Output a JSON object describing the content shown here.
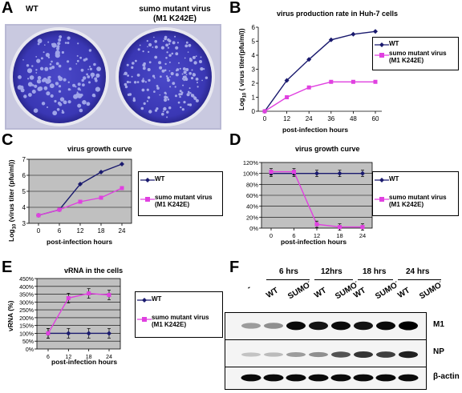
{
  "panel_a": {
    "letter": "A",
    "label_left": "WT",
    "label_right_line1": "sumo mutant virus",
    "label_right_line2": "(M1 K242E)"
  },
  "panel_b": {
    "letter": "B"
  },
  "panel_c": {
    "letter": "C"
  },
  "panel_d": {
    "letter": "D"
  },
  "panel_e": {
    "letter": "E"
  },
  "panel_f": {
    "letter": "F",
    "timepoints": [
      "6 hrs",
      "12hrs",
      "18 hrs",
      "24 hrs"
    ],
    "lane_labels": [
      "-",
      "WT",
      "SUMO",
      "WT",
      "SUMO",
      "WT",
      "SUMO",
      "WT",
      "SUMO"
    ],
    "superscript": "-",
    "rows": [
      "M1",
      "NP",
      "β-actin"
    ]
  },
  "chart_data": [
    {
      "id": "B",
      "type": "line",
      "title": "virus production rate in Huh-7 cells",
      "xlabel": "post-infection hours",
      "ylabel": "Log10 ( virus titer(pfu/ml))",
      "x": [
        0,
        12,
        24,
        36,
        48,
        60
      ],
      "ylim": [
        0,
        6
      ],
      "yticks": [
        0,
        1,
        2,
        3,
        4,
        5,
        6
      ],
      "grid": false,
      "legend_position": "right",
      "series": [
        {
          "name": "WT",
          "color": "#1a1a6e",
          "marker": "diamond",
          "values": [
            0,
            2.2,
            3.7,
            5.1,
            5.5,
            5.7
          ]
        },
        {
          "name": "sumo mutant virus (M1 K242E)",
          "color": "#e040e0",
          "marker": "square",
          "values": [
            0,
            1.0,
            1.7,
            2.1,
            2.1,
            2.1
          ]
        }
      ]
    },
    {
      "id": "C",
      "type": "line",
      "title": "virus growth curve",
      "xlabel": "post-infection hours",
      "ylabel": "Log10 (virus titer (pfu/ml))",
      "x": [
        0,
        6,
        12,
        18,
        24
      ],
      "ylim": [
        3,
        7
      ],
      "yticks": [
        3,
        4,
        5,
        6,
        7
      ],
      "grid": true,
      "legend_position": "right",
      "series": [
        {
          "name": "WT",
          "color": "#1a1a6e",
          "marker": "diamond",
          "values": [
            3.5,
            3.85,
            5.45,
            6.2,
            6.7
          ]
        },
        {
          "name": "sumo mutant virus (M1 K242E)",
          "color": "#e040e0",
          "marker": "square",
          "values": [
            3.5,
            3.85,
            4.35,
            4.6,
            5.2
          ]
        }
      ]
    },
    {
      "id": "D",
      "type": "line",
      "title": "virus growth curve",
      "xlabel": "post-infection hours",
      "ylabel": "",
      "x": [
        0,
        6,
        12,
        18,
        24
      ],
      "ylim": [
        0,
        120
      ],
      "yticks": [
        "0%",
        "20%",
        "40%",
        "60%",
        "80%",
        "100%",
        "120%"
      ],
      "grid": true,
      "legend_position": "right",
      "series": [
        {
          "name": "WT",
          "color": "#1a1a6e",
          "marker": "diamond",
          "values": [
            100,
            100,
            100,
            100,
            100
          ]
        },
        {
          "name": "sumo mutant virus (M1 K242E)",
          "color": "#e040e0",
          "marker": "square",
          "values": [
            103,
            103,
            7,
            2,
            2
          ]
        }
      ]
    },
    {
      "id": "E",
      "type": "line",
      "title": "vRNA in the cells",
      "xlabel": "post-infection hours",
      "ylabel": "vRNA (%)",
      "x": [
        6,
        12,
        18,
        24
      ],
      "ylim": [
        0,
        450
      ],
      "yticks": [
        "0%",
        "50%",
        "100%",
        "150%",
        "200%",
        "250%",
        "300%",
        "350%",
        "400%",
        "450%"
      ],
      "grid": true,
      "legend_position": "right",
      "series": [
        {
          "name": "WT",
          "color": "#1a1a6e",
          "marker": "diamond",
          "values": [
            100,
            100,
            100,
            100
          ]
        },
        {
          "name": "sumo mutant virus (M1 K242E)",
          "color": "#e040e0",
          "marker": "square",
          "values": [
            100,
            325,
            355,
            345
          ]
        }
      ]
    }
  ]
}
